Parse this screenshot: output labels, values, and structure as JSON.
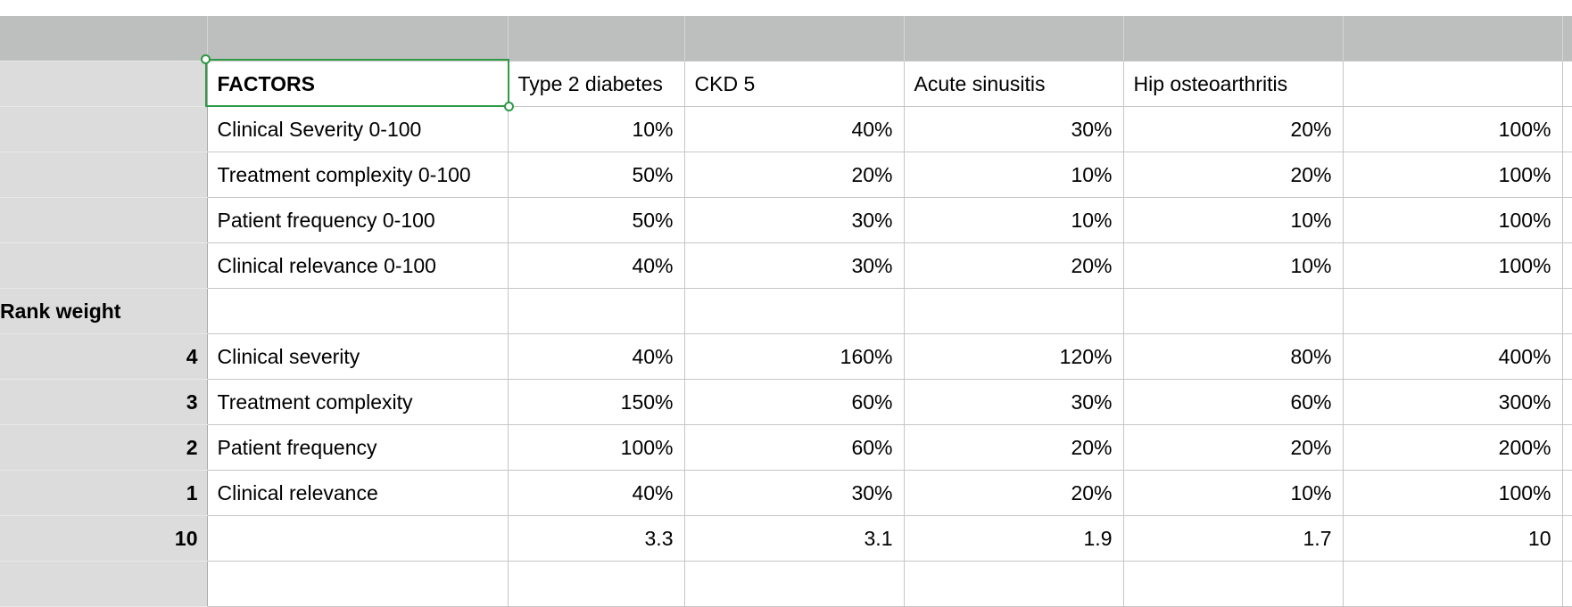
{
  "header_columns": [
    "",
    "",
    "",
    "",
    "",
    "",
    "",
    ""
  ],
  "table": {
    "header_row": {
      "row_label": "",
      "factor": "FACTORS",
      "conditions": [
        "Type 2 diabetes",
        "CKD 5",
        "Acute sinusitis",
        "Hip osteoarthritis"
      ],
      "total": ""
    },
    "scores": [
      {
        "factor": "Clinical Severity 0-100",
        "values": [
          "10%",
          "40%",
          "30%",
          "20%"
        ],
        "total": "100%"
      },
      {
        "factor": "Treatment complexity 0-100",
        "values": [
          "50%",
          "20%",
          "10%",
          "20%"
        ],
        "total": "100%"
      },
      {
        "factor": "Patient frequency 0-100",
        "values": [
          "50%",
          "30%",
          "10%",
          "10%"
        ],
        "total": "100%"
      },
      {
        "factor": "Clinical relevance 0-100",
        "values": [
          "40%",
          "30%",
          "20%",
          "10%"
        ],
        "total": "100%"
      }
    ],
    "rank_weight_label": "Rank weight",
    "weighted": [
      {
        "rank": "4",
        "factor": "Clinical severity",
        "values": [
          "40%",
          "160%",
          "120%",
          "80%"
        ],
        "total": "400%"
      },
      {
        "rank": "3",
        "factor": "Treatment complexity",
        "values": [
          "150%",
          "60%",
          "30%",
          "60%"
        ],
        "total": "300%"
      },
      {
        "rank": "2",
        "factor": "Patient frequency",
        "values": [
          "100%",
          "60%",
          "20%",
          "20%"
        ],
        "total": "200%"
      },
      {
        "rank": "1",
        "factor": "Clinical relevance",
        "values": [
          "40%",
          "30%",
          "20%",
          "10%"
        ],
        "total": "100%"
      }
    ],
    "totals": {
      "rank": "10",
      "factor": "",
      "values": [
        "3.3",
        "3.1",
        "1.9",
        "1.7"
      ],
      "total": "10"
    }
  },
  "selection": {
    "cell": "FACTORS",
    "color": "#2e9a45"
  }
}
